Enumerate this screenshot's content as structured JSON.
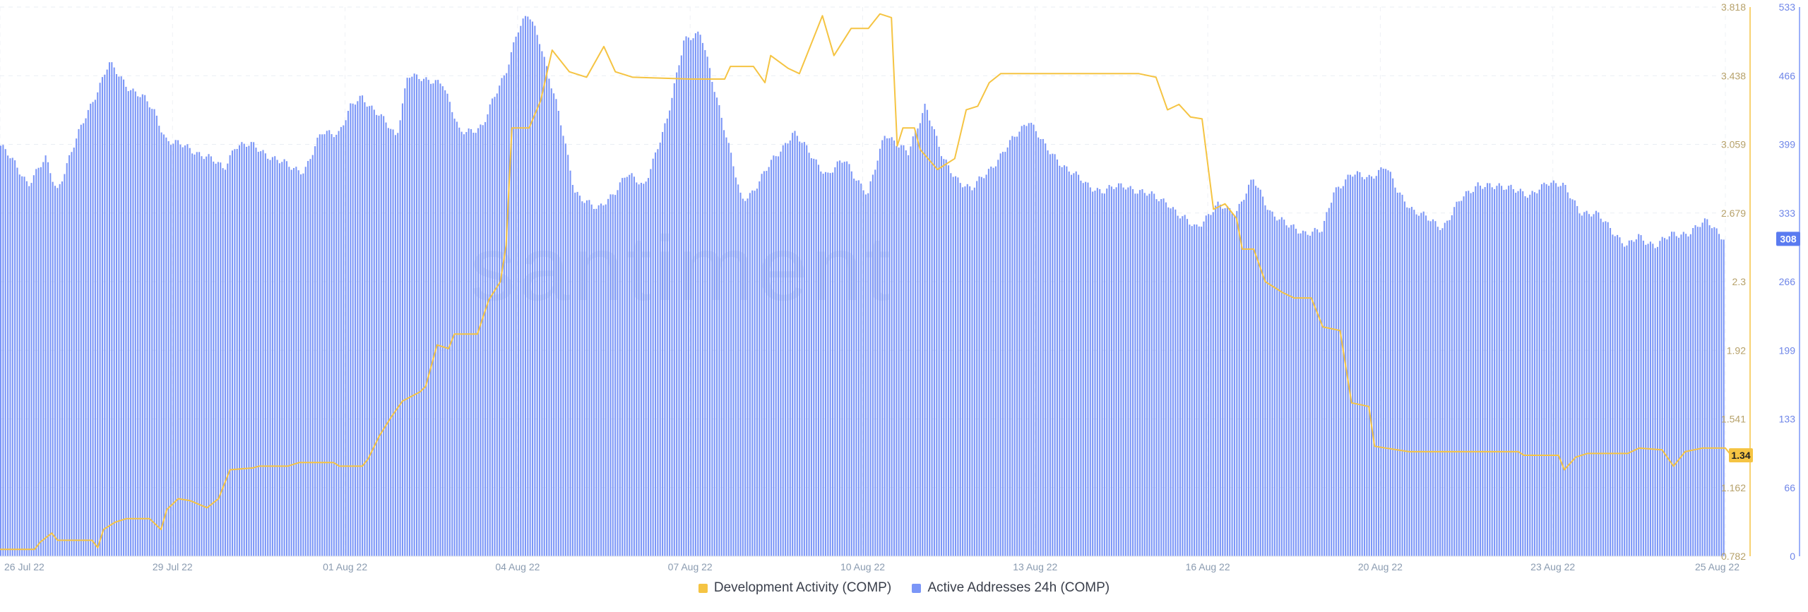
{
  "watermark": "santiment",
  "chart_data": {
    "type": "bar+line",
    "x_labels": [
      "26 Jul 22",
      "29 Jul 22",
      "01 Aug 22",
      "04 Aug 22",
      "07 Aug 22",
      "10 Aug 22",
      "13 Aug 22",
      "16 Aug 22",
      "20 Aug 22",
      "23 Aug 22",
      "25 Aug 22"
    ],
    "x_label_days": [
      0,
      3,
      6,
      9,
      12,
      15,
      18,
      21,
      24,
      27,
      30
    ],
    "x_range_days": [
      0,
      30
    ],
    "left_axis": {
      "series": "Development Activity (COMP)",
      "ticks": [
        "3.818",
        "3.438",
        "3.059",
        "2.679",
        "2.3",
        "1.92",
        "1.541",
        "1.162",
        "0.782"
      ],
      "range": [
        0.782,
        3.818
      ],
      "current_value": "1.34"
    },
    "right_axis": {
      "series": "Active Addresses 24h (COMP)",
      "ticks": [
        "533",
        "466",
        "399",
        "333",
        "266",
        "199",
        "133",
        "66",
        "0"
      ],
      "range": [
        0,
        533
      ],
      "current_value": "308"
    },
    "grid": true,
    "legend_position": "bottom",
    "series": [
      {
        "name": "Development Activity (COMP)",
        "type": "line",
        "color": "#f5c443",
        "points": [
          [
            0,
            0.82
          ],
          [
            0.6,
            0.82
          ],
          [
            0.7,
            0.86
          ],
          [
            0.9,
            0.91
          ],
          [
            1.0,
            0.87
          ],
          [
            1.1,
            0.87
          ],
          [
            1.6,
            0.87
          ],
          [
            1.7,
            0.83
          ],
          [
            1.8,
            0.93
          ],
          [
            2.0,
            0.97
          ],
          [
            2.2,
            0.99
          ],
          [
            2.6,
            0.99
          ],
          [
            2.8,
            0.93
          ],
          [
            2.9,
            1.04
          ],
          [
            3.1,
            1.1
          ],
          [
            3.3,
            1.09
          ],
          [
            3.6,
            1.05
          ],
          [
            3.8,
            1.1
          ],
          [
            4.0,
            1.26
          ],
          [
            4.4,
            1.27
          ],
          [
            4.5,
            1.28
          ],
          [
            5.0,
            1.28
          ],
          [
            5.2,
            1.3
          ],
          [
            5.8,
            1.3
          ],
          [
            5.9,
            1.28
          ],
          [
            6.3,
            1.28
          ],
          [
            6.4,
            1.32
          ],
          [
            6.6,
            1.45
          ],
          [
            6.8,
            1.55
          ],
          [
            7.0,
            1.64
          ],
          [
            7.3,
            1.69
          ],
          [
            7.4,
            1.72
          ],
          [
            7.6,
            1.95
          ],
          [
            7.8,
            1.93
          ],
          [
            7.9,
            2.01
          ],
          [
            8.3,
            2.01
          ],
          [
            8.5,
            2.2
          ],
          [
            8.7,
            2.3
          ],
          [
            8.8,
            2.5
          ],
          [
            8.9,
            3.15
          ],
          [
            9.2,
            3.15
          ],
          [
            9.4,
            3.3
          ],
          [
            9.6,
            3.58
          ],
          [
            9.9,
            3.46
          ],
          [
            10.2,
            3.43
          ],
          [
            10.5,
            3.6
          ],
          [
            10.7,
            3.46
          ],
          [
            11.0,
            3.43
          ],
          [
            12.0,
            3.42
          ],
          [
            12.6,
            3.42
          ],
          [
            12.7,
            3.49
          ],
          [
            13.1,
            3.49
          ],
          [
            13.3,
            3.4
          ],
          [
            13.4,
            3.55
          ],
          [
            13.7,
            3.48
          ],
          [
            13.9,
            3.45
          ],
          [
            14.1,
            3.61
          ],
          [
            14.3,
            3.77
          ],
          [
            14.5,
            3.55
          ],
          [
            14.8,
            3.7
          ],
          [
            15.1,
            3.7
          ],
          [
            15.3,
            3.78
          ],
          [
            15.5,
            3.76
          ],
          [
            15.6,
            3.05
          ],
          [
            15.7,
            3.15
          ],
          [
            15.9,
            3.15
          ],
          [
            16.0,
            3.03
          ],
          [
            16.3,
            2.92
          ],
          [
            16.6,
            2.98
          ],
          [
            16.8,
            3.25
          ],
          [
            17.0,
            3.27
          ],
          [
            17.2,
            3.4
          ],
          [
            17.4,
            3.45
          ],
          [
            18.0,
            3.45
          ],
          [
            19.0,
            3.45
          ],
          [
            19.8,
            3.45
          ],
          [
            20.1,
            3.43
          ],
          [
            20.3,
            3.25
          ],
          [
            20.5,
            3.28
          ],
          [
            20.7,
            3.21
          ],
          [
            20.9,
            3.2
          ],
          [
            21.1,
            2.7
          ],
          [
            21.3,
            2.73
          ],
          [
            21.5,
            2.65
          ],
          [
            21.6,
            2.48
          ],
          [
            21.8,
            2.48
          ],
          [
            22.0,
            2.3
          ],
          [
            22.3,
            2.24
          ],
          [
            22.5,
            2.21
          ],
          [
            22.8,
            2.21
          ],
          [
            23.0,
            2.05
          ],
          [
            23.3,
            2.03
          ],
          [
            23.5,
            1.63
          ],
          [
            23.8,
            1.61
          ],
          [
            23.9,
            1.39
          ],
          [
            24.1,
            1.38
          ],
          [
            24.5,
            1.36
          ],
          [
            25.0,
            1.36
          ],
          [
            26.0,
            1.36
          ],
          [
            26.4,
            1.36
          ],
          [
            26.5,
            1.34
          ],
          [
            27.1,
            1.34
          ],
          [
            27.2,
            1.26
          ],
          [
            27.4,
            1.33
          ],
          [
            27.6,
            1.35
          ],
          [
            28.0,
            1.35
          ],
          [
            28.3,
            1.35
          ],
          [
            28.5,
            1.38
          ],
          [
            28.9,
            1.37
          ],
          [
            29.1,
            1.28
          ],
          [
            29.3,
            1.36
          ],
          [
            29.6,
            1.38
          ],
          [
            30.0,
            1.38
          ],
          [
            30.1,
            1.34
          ]
        ]
      },
      {
        "name": "Active Addresses 24h (COMP)",
        "type": "bar",
        "color": "#7b96f7",
        "anchors": [
          [
            0,
            400
          ],
          [
            0.3,
            378
          ],
          [
            0.5,
            362
          ],
          [
            0.8,
            385
          ],
          [
            1.0,
            355
          ],
          [
            1.2,
            385
          ],
          [
            1.5,
            427
          ],
          [
            1.9,
            478
          ],
          [
            2.2,
            458
          ],
          [
            2.5,
            445
          ],
          [
            2.7,
            430
          ],
          [
            2.9,
            405
          ],
          [
            3.3,
            395
          ],
          [
            3.6,
            389
          ],
          [
            3.9,
            375
          ],
          [
            4.1,
            400
          ],
          [
            4.4,
            398
          ],
          [
            4.7,
            389
          ],
          [
            5.1,
            376
          ],
          [
            5.3,
            375
          ],
          [
            5.6,
            410
          ],
          [
            5.9,
            412
          ],
          [
            6.1,
            435
          ],
          [
            6.3,
            445
          ],
          [
            6.6,
            430
          ],
          [
            6.9,
            405
          ],
          [
            7.1,
            470
          ],
          [
            7.4,
            460
          ],
          [
            7.7,
            462
          ],
          [
            8.0,
            410
          ],
          [
            8.4,
            418
          ],
          [
            8.8,
            470
          ],
          [
            9.0,
            510
          ],
          [
            9.2,
            525
          ],
          [
            9.4,
            500
          ],
          [
            9.7,
            435
          ],
          [
            10.0,
            355
          ],
          [
            10.4,
            335
          ],
          [
            10.7,
            355
          ],
          [
            10.9,
            370
          ],
          [
            11.2,
            360
          ],
          [
            11.6,
            420
          ],
          [
            11.9,
            503
          ],
          [
            12.2,
            505
          ],
          [
            12.5,
            440
          ],
          [
            12.9,
            345
          ],
          [
            13.1,
            355
          ],
          [
            13.4,
            380
          ],
          [
            13.8,
            412
          ],
          [
            14.1,
            390
          ],
          [
            14.4,
            370
          ],
          [
            14.7,
            385
          ],
          [
            15.1,
            350
          ],
          [
            15.4,
            412
          ],
          [
            15.8,
            390
          ],
          [
            16.1,
            440
          ],
          [
            16.4,
            385
          ],
          [
            16.6,
            370
          ],
          [
            16.9,
            355
          ],
          [
            17.2,
            375
          ],
          [
            17.5,
            395
          ],
          [
            17.9,
            425
          ],
          [
            18.2,
            395
          ],
          [
            18.6,
            375
          ],
          [
            18.9,
            360
          ],
          [
            19.2,
            355
          ],
          [
            19.6,
            360
          ],
          [
            19.9,
            352
          ],
          [
            20.3,
            345
          ],
          [
            20.5,
            330
          ],
          [
            20.8,
            320
          ],
          [
            21.2,
            340
          ],
          [
            21.5,
            335
          ],
          [
            21.8,
            365
          ],
          [
            22.1,
            335
          ],
          [
            22.4,
            320
          ],
          [
            22.7,
            315
          ],
          [
            23.0,
            315
          ],
          [
            23.2,
            355
          ],
          [
            23.5,
            370
          ],
          [
            23.8,
            368
          ],
          [
            24.1,
            378
          ],
          [
            24.3,
            355
          ],
          [
            24.6,
            335
          ],
          [
            24.9,
            325
          ],
          [
            25.1,
            320
          ],
          [
            25.4,
            345
          ],
          [
            25.7,
            362
          ],
          [
            26.0,
            357
          ],
          [
            26.3,
            360
          ],
          [
            26.6,
            347
          ],
          [
            26.9,
            365
          ],
          [
            27.2,
            358
          ],
          [
            27.5,
            335
          ],
          [
            27.8,
            330
          ],
          [
            28.0,
            320
          ],
          [
            28.3,
            300
          ],
          [
            28.5,
            310
          ],
          [
            28.8,
            302
          ],
          [
            29.1,
            312
          ],
          [
            29.4,
            315
          ],
          [
            29.7,
            325
          ],
          [
            29.9,
            315
          ],
          [
            30.0,
            308
          ]
        ]
      }
    ]
  }
}
